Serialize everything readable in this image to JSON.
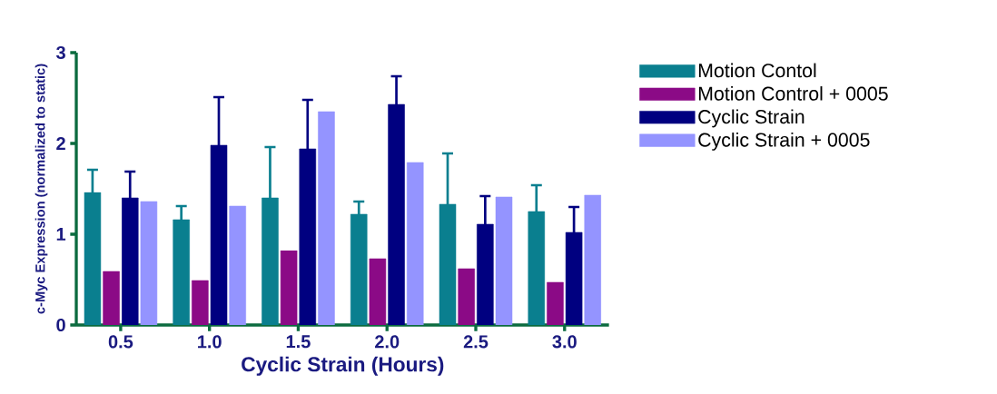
{
  "chart_data": {
    "type": "bar",
    "xlabel": "Cyclic Strain (Hours)",
    "ylabel": "c-Myc Expression (normalized to static)",
    "categories": [
      "0.5",
      "1.0",
      "1.5",
      "2.0",
      "2.5",
      "3.0"
    ],
    "series": [
      {
        "name": "Motion Contol",
        "color": "#0a7f8f",
        "values": [
          1.46,
          1.16,
          1.4,
          1.22,
          1.33,
          1.25
        ],
        "errors": [
          [
            1.46,
            1.71
          ],
          [
            1.16,
            1.31
          ],
          [
            1.4,
            1.96
          ],
          [
            1.22,
            1.36
          ],
          [
            1.33,
            1.89
          ],
          [
            1.25,
            1.54
          ]
        ]
      },
      {
        "name": "Motion Control + 0005",
        "color": "#8b0a86",
        "values": [
          0.59,
          0.49,
          0.82,
          0.73,
          0.62,
          0.47
        ]
      },
      {
        "name": "Cyclic Strain",
        "color": "#000080",
        "values": [
          1.4,
          1.98,
          1.94,
          2.43,
          1.11,
          1.02
        ],
        "errors": [
          [
            1.4,
            1.69
          ],
          [
            1.98,
            2.51
          ],
          [
            1.94,
            2.48
          ],
          [
            2.43,
            2.74
          ],
          [
            1.11,
            1.42
          ],
          [
            1.02,
            1.3
          ]
        ]
      },
      {
        "name": "Cyclic Strain + 0005",
        "color": "#9494ff",
        "values": [
          1.36,
          1.31,
          2.35,
          1.79,
          1.41,
          1.43
        ]
      }
    ],
    "ylim": [
      0,
      3
    ],
    "yticks": [
      0,
      1,
      2,
      3
    ],
    "grid": false,
    "legend": "right"
  }
}
